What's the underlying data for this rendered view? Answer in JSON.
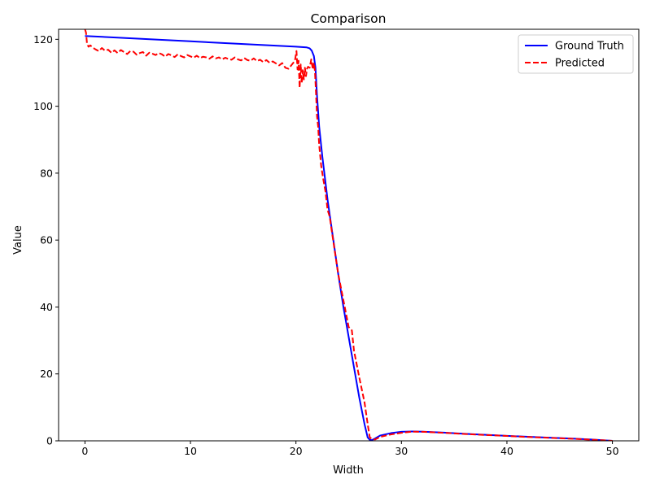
{
  "chart_data": {
    "type": "line",
    "title": "Comparison",
    "xlabel": "Width",
    "ylabel": "Value",
    "xlim": [
      -2.5,
      52.5
    ],
    "ylim": [
      0,
      123
    ],
    "xticks": [
      0,
      10,
      20,
      30,
      40,
      50
    ],
    "yticks": [
      0,
      20,
      40,
      60,
      80,
      100,
      120
    ],
    "grid": false,
    "legend_position": "top-right",
    "series": [
      {
        "name": "Ground Truth",
        "color": "#0000ff",
        "style": "solid",
        "x": [
          0,
          5,
          10,
          15,
          20,
          21,
          21.3,
          21.5,
          21.7,
          21.85,
          22,
          22.2,
          22.5,
          23,
          23.5,
          24,
          24.5,
          25,
          25.5,
          26,
          26.5,
          26.8,
          27,
          27.2,
          27.5,
          28,
          29,
          30,
          31,
          32,
          34,
          36,
          38,
          40,
          42,
          44,
          46,
          48,
          50
        ],
        "values": [
          121,
          120.2,
          119.4,
          118.6,
          117.8,
          117.6,
          117.3,
          116.6,
          115,
          111.5,
          103,
          94,
          85,
          72,
          61,
          50,
          40,
          31,
          22,
          13,
          5,
          1,
          0.3,
          0.2,
          0.7,
          1.6,
          2.3,
          2.7,
          2.8,
          2.75,
          2.45,
          2.1,
          1.8,
          1.5,
          1.2,
          0.95,
          0.7,
          0.4,
          0
        ]
      },
      {
        "name": "Predicted",
        "color": "#ff0000",
        "style": "dashed",
        "x": [
          0,
          0.1,
          0.2,
          0.35,
          0.5,
          0.8,
          1.0,
          1.3,
          1.6,
          1.9,
          2.2,
          2.5,
          2.8,
          3.1,
          3.4,
          3.7,
          4.0,
          4.3,
          4.6,
          4.9,
          5.2,
          5.5,
          5.8,
          6.1,
          6.4,
          6.7,
          7.0,
          7.3,
          7.6,
          7.9,
          8.2,
          8.5,
          8.8,
          9.1,
          9.4,
          9.7,
          10.0,
          10.3,
          10.6,
          10.9,
          11.2,
          11.5,
          11.8,
          12.1,
          12.4,
          12.7,
          13.0,
          13.3,
          13.6,
          13.9,
          14.2,
          14.5,
          14.8,
          15.1,
          15.4,
          15.7,
          16.0,
          16.3,
          16.6,
          16.9,
          17.2,
          17.5,
          17.8,
          18.1,
          18.4,
          18.7,
          19.0,
          19.3,
          19.6,
          19.9,
          20.05,
          20.15,
          20.25,
          20.35,
          20.45,
          20.55,
          20.65,
          20.75,
          20.85,
          20.95,
          21.05,
          21.15,
          21.3,
          21.45,
          21.6,
          21.7,
          21.8,
          21.9,
          22.0,
          22.1,
          22.2,
          22.4,
          22.6,
          22.8,
          23.0,
          23.2,
          23.5,
          24.0,
          24.5,
          25.0,
          25.3,
          25.5,
          26.0,
          26.5,
          26.8,
          27.0,
          27.2,
          27.5,
          28,
          29,
          30,
          31,
          32,
          34,
          36,
          38,
          40,
          42,
          44,
          46,
          48,
          50
        ],
        "values": [
          123,
          122,
          118.5,
          117.8,
          118.2,
          117.4,
          117.0,
          116.5,
          117.4,
          116.6,
          116.9,
          116.0,
          116.7,
          115.9,
          116.8,
          116.2,
          115.6,
          116.5,
          116.3,
          115.4,
          115.9,
          116.2,
          115.1,
          116.0,
          115.7,
          115.3,
          115.9,
          115.5,
          114.8,
          115.6,
          115.2,
          114.7,
          115.5,
          115.0,
          114.6,
          115.3,
          114.9,
          114.5,
          115.1,
          114.4,
          114.8,
          114.6,
          114.2,
          114.9,
          114.3,
          114.6,
          114.0,
          114.5,
          114.1,
          113.9,
          114.6,
          114.0,
          113.7,
          114.4,
          113.8,
          113.6,
          114.3,
          113.5,
          113.9,
          113.2,
          113.8,
          113.0,
          113.4,
          112.8,
          112.2,
          112.9,
          111.5,
          111.2,
          112.4,
          113.6,
          116.5,
          111.0,
          113.6,
          105.5,
          112.5,
          107.0,
          110.8,
          108.0,
          111.5,
          109.0,
          111.2,
          111.8,
          111.5,
          114.0,
          111.0,
          113.0,
          110.5,
          104.0,
          97.0,
          94.0,
          88.5,
          82.0,
          78.0,
          74.5,
          69.0,
          67.0,
          60.5,
          50.0,
          42.0,
          34.0,
          33.0,
          27.0,
          19.0,
          11.5,
          5.0,
          1.0,
          0.6,
          0.4,
          1.2,
          1.9,
          2.4,
          2.75,
          2.7,
          2.4,
          2.05,
          1.75,
          1.45,
          1.15,
          0.9,
          0.65,
          0.35,
          0
        ]
      }
    ]
  }
}
